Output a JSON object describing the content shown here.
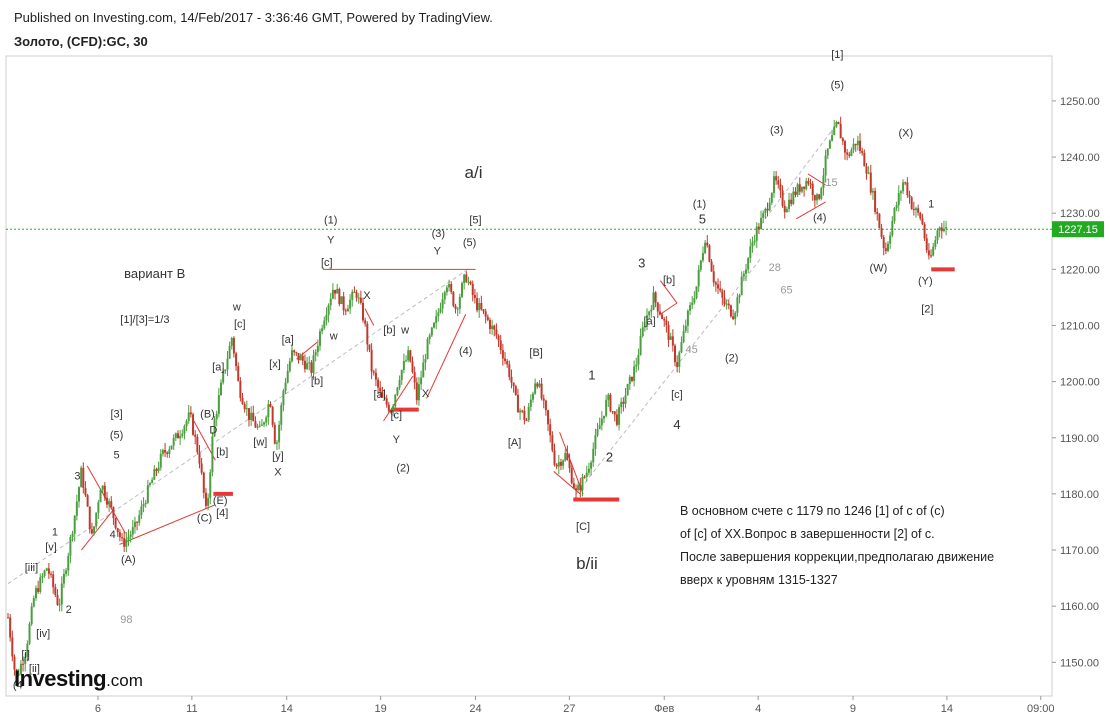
{
  "header": {
    "published": "Published on Investing.com, 14/Feb/2017 - 3:36:46 GMT, Powered by TradingView.",
    "symbol": "Золото, (CFD):GC, 30"
  },
  "logo": {
    "brand": "Investing",
    "suffix": ".com"
  },
  "colors": {
    "up_candle": "#4a9e3f",
    "down_candle": "#c0392b",
    "last_price_line": "#22aa22",
    "annotation_line": "#e53935",
    "support_mark": "#e53935",
    "trend_dashed": "#bdbdbd",
    "axis_text": "#555555",
    "annotation_text": "#333333",
    "fib_text": "#999999"
  },
  "chart_data": {
    "type": "candlestick",
    "symbol": "Золото, (CFD):GC, 30",
    "ylim": [
      1144,
      1258
    ],
    "y_ticks": [
      1150,
      1160,
      1170,
      1180,
      1190,
      1200,
      1210,
      1220,
      1230,
      1240,
      1250
    ],
    "y_tick_labels": [
      "1150.00",
      "1160.00",
      "1170.00",
      "1180.00",
      "1190.00",
      "1200.00",
      "1210.00",
      "1220.00",
      "1230.00",
      "1240.00",
      "1250.00"
    ],
    "x_ticks": [
      {
        "label": "6",
        "t": 0.092
      },
      {
        "label": "11",
        "t": 0.188
      },
      {
        "label": "14",
        "t": 0.285
      },
      {
        "label": "19",
        "t": 0.381
      },
      {
        "label": "24",
        "t": 0.478
      },
      {
        "label": "27",
        "t": 0.574
      },
      {
        "label": "Фев",
        "t": 0.671
      },
      {
        "label": "4",
        "t": 0.767
      },
      {
        "label": "9",
        "t": 0.864
      },
      {
        "label": "14",
        "t": 0.96
      },
      {
        "label": "09:00",
        "t": 1.056
      }
    ],
    "last_price": 1227.15,
    "last_price_label": "1227.15",
    "price_path": [
      [
        0.0,
        1158
      ],
      [
        0.008,
        1147
      ],
      [
        0.018,
        1152
      ],
      [
        0.027,
        1162
      ],
      [
        0.04,
        1167
      ],
      [
        0.052,
        1160
      ],
      [
        0.068,
        1176
      ],
      [
        0.075,
        1184
      ],
      [
        0.086,
        1172
      ],
      [
        0.095,
        1182
      ],
      [
        0.106,
        1177
      ],
      [
        0.117,
        1171
      ],
      [
        0.13,
        1174
      ],
      [
        0.144,
        1181
      ],
      [
        0.158,
        1187
      ],
      [
        0.172,
        1190
      ],
      [
        0.186,
        1194
      ],
      [
        0.196,
        1186
      ],
      [
        0.203,
        1176
      ],
      [
        0.21,
        1192
      ],
      [
        0.22,
        1201
      ],
      [
        0.229,
        1208
      ],
      [
        0.236,
        1199
      ],
      [
        0.246,
        1194
      ],
      [
        0.258,
        1191
      ],
      [
        0.268,
        1197
      ],
      [
        0.274,
        1188
      ],
      [
        0.282,
        1199
      ],
      [
        0.29,
        1205
      ],
      [
        0.3,
        1204
      ],
      [
        0.31,
        1202
      ],
      [
        0.322,
        1211
      ],
      [
        0.333,
        1217
      ],
      [
        0.344,
        1213
      ],
      [
        0.356,
        1216
      ],
      [
        0.364,
        1211
      ],
      [
        0.372,
        1202
      ],
      [
        0.382,
        1197
      ],
      [
        0.392,
        1195
      ],
      [
        0.4,
        1201
      ],
      [
        0.41,
        1205
      ],
      [
        0.418,
        1197
      ],
      [
        0.428,
        1206
      ],
      [
        0.438,
        1211
      ],
      [
        0.448,
        1218
      ],
      [
        0.458,
        1213
      ],
      [
        0.468,
        1219
      ],
      [
        0.478,
        1214
      ],
      [
        0.49,
        1211
      ],
      [
        0.5,
        1208
      ],
      [
        0.512,
        1202
      ],
      [
        0.52,
        1196
      ],
      [
        0.53,
        1193
      ],
      [
        0.54,
        1201
      ],
      [
        0.55,
        1194
      ],
      [
        0.56,
        1185
      ],
      [
        0.57,
        1187
      ],
      [
        0.581,
        1180
      ],
      [
        0.592,
        1184
      ],
      [
        0.603,
        1191
      ],
      [
        0.613,
        1197
      ],
      [
        0.622,
        1193
      ],
      [
        0.632,
        1198
      ],
      [
        0.642,
        1203
      ],
      [
        0.65,
        1210
      ],
      [
        0.66,
        1215
      ],
      [
        0.668,
        1212
      ],
      [
        0.676,
        1208
      ],
      [
        0.684,
        1203
      ],
      [
        0.694,
        1211
      ],
      [
        0.704,
        1217
      ],
      [
        0.713,
        1226
      ],
      [
        0.722,
        1218
      ],
      [
        0.732,
        1214
      ],
      [
        0.742,
        1212
      ],
      [
        0.752,
        1219
      ],
      [
        0.763,
        1226
      ],
      [
        0.774,
        1230
      ],
      [
        0.784,
        1236
      ],
      [
        0.794,
        1231
      ],
      [
        0.806,
        1234
      ],
      [
        0.818,
        1236
      ],
      [
        0.828,
        1232
      ],
      [
        0.838,
        1241
      ],
      [
        0.848,
        1246
      ],
      [
        0.858,
        1240
      ],
      [
        0.868,
        1243
      ],
      [
        0.878,
        1238
      ],
      [
        0.887,
        1231
      ],
      [
        0.897,
        1223
      ],
      [
        0.906,
        1230
      ],
      [
        0.916,
        1236
      ],
      [
        0.925,
        1231
      ],
      [
        0.934,
        1229
      ],
      [
        0.942,
        1221
      ],
      [
        0.952,
        1228
      ],
      [
        0.96,
        1227
      ]
    ],
    "wave_labels": [
      {
        "text": "[1]",
        "t": 0.848,
        "v": 1257.6
      },
      {
        "text": "(5)",
        "t": 0.848,
        "v": 1252.2
      },
      {
        "text": "(3)",
        "t": 0.786,
        "v": 1244.2
      },
      {
        "text": "(X)",
        "t": 0.918,
        "v": 1243.7
      },
      {
        "text": "15",
        "t": 0.842,
        "v": 1234.8,
        "fib": true
      },
      {
        "text": "(4)",
        "t": 0.83,
        "v": 1228.6
      },
      {
        "text": "1",
        "t": 0.944,
        "v": 1231.0
      },
      {
        "text": "(1)",
        "t": 0.707,
        "v": 1231.0
      },
      {
        "text": "5",
        "t": 0.71,
        "v": 1228.2,
        "size": 13
      },
      {
        "text": "(W)",
        "t": 0.89,
        "v": 1219.6
      },
      {
        "text": "(Y)",
        "t": 0.938,
        "v": 1217.3
      },
      {
        "text": "[2]",
        "t": 0.94,
        "v": 1212.3
      },
      {
        "text": "28",
        "t": 0.784,
        "v": 1219.7,
        "fib": true
      },
      {
        "text": "65",
        "t": 0.796,
        "v": 1215.7,
        "fib": true
      },
      {
        "text": "45",
        "t": 0.699,
        "v": 1205.1,
        "fib": true
      },
      {
        "text": "(2)",
        "t": 0.74,
        "v": 1203.6
      },
      {
        "text": "3",
        "t": 0.648,
        "v": 1220.3,
        "size": 13
      },
      {
        "text": "[b]",
        "t": 0.676,
        "v": 1217.5
      },
      {
        "text": "[a]",
        "t": 0.656,
        "v": 1210.2
      },
      {
        "text": "[c]",
        "t": 0.684,
        "v": 1197.1
      },
      {
        "text": "4",
        "t": 0.684,
        "v": 1191.6,
        "size": 13
      },
      {
        "text": "1",
        "t": 0.597,
        "v": 1200.4,
        "size": 13
      },
      {
        "text": "2",
        "t": 0.615,
        "v": 1185.8,
        "size": 13
      },
      {
        "text": "[B]",
        "t": 0.54,
        "v": 1204.6
      },
      {
        "text": "[A]",
        "t": 0.518,
        "v": 1188.5
      },
      {
        "text": "[C]",
        "t": 0.588,
        "v": 1173.6
      },
      {
        "text": "b/ii",
        "t": 0.592,
        "v": 1166.6,
        "size": 17
      },
      {
        "text": "a/i",
        "t": 0.476,
        "v": 1236.3,
        "size": 17
      },
      {
        "text": "[5]",
        "t": 0.478,
        "v": 1228.2
      },
      {
        "text": "(3)",
        "t": 0.44,
        "v": 1225.8
      },
      {
        "text": "(5)",
        "t": 0.472,
        "v": 1224.2
      },
      {
        "text": "Y",
        "t": 0.439,
        "v": 1222.6
      },
      {
        "text": "(4)",
        "t": 0.468,
        "v": 1204.8
      },
      {
        "text": "(1)",
        "t": 0.33,
        "v": 1228.2
      },
      {
        "text": "Y",
        "t": 0.33,
        "v": 1224.6
      },
      {
        "text": "[c]",
        "t": 0.326,
        "v": 1220.6
      },
      {
        "text": "w",
        "t": 0.333,
        "v": 1207.5
      },
      {
        "text": "X",
        "t": 0.367,
        "v": 1214.7
      },
      {
        "text": "[b]",
        "t": 0.39,
        "v": 1208.6
      },
      {
        "text": "w",
        "t": 0.406,
        "v": 1208.6
      },
      {
        "text": "[a]",
        "t": 0.38,
        "v": 1197.1
      },
      {
        "text": "[c]",
        "t": 0.397,
        "v": 1193.4
      },
      {
        "text": "X",
        "t": 0.427,
        "v": 1197.3
      },
      {
        "text": "Y",
        "t": 0.397,
        "v": 1189.1
      },
      {
        "text": "(2)",
        "t": 0.404,
        "v": 1184.0
      },
      {
        "text": "[b]",
        "t": 0.316,
        "v": 1199.5
      },
      {
        "text": "[a]",
        "t": 0.286,
        "v": 1206.9
      },
      {
        "text": "[x]",
        "t": 0.273,
        "v": 1202.5
      },
      {
        "text": "[w]",
        "t": 0.258,
        "v": 1188.6
      },
      {
        "text": "[y]",
        "t": 0.276,
        "v": 1186.1
      },
      {
        "text": "X",
        "t": 0.276,
        "v": 1183.3
      },
      {
        "text": "w",
        "t": 0.234,
        "v": 1212.7
      },
      {
        "text": "[c]",
        "t": 0.237,
        "v": 1209.6
      },
      {
        "text": "[a]",
        "t": 0.215,
        "v": 1202.0
      },
      {
        "text": "(B)",
        "t": 0.204,
        "v": 1193.6
      },
      {
        "text": "D",
        "t": 0.21,
        "v": 1190.8
      },
      {
        "text": "[b]",
        "t": 0.219,
        "v": 1186.8
      },
      {
        "text": "(E)",
        "t": 0.217,
        "v": 1178.2
      },
      {
        "text": "[4]",
        "t": 0.219,
        "v": 1176.0
      },
      {
        "text": "(C)",
        "t": 0.201,
        "v": 1175.1
      },
      {
        "text": "[3]",
        "t": 0.111,
        "v": 1193.6
      },
      {
        "text": "(5)",
        "t": 0.111,
        "v": 1189.9
      },
      {
        "text": "5",
        "t": 0.111,
        "v": 1186.3
      },
      {
        "text": "3",
        "t": 0.071,
        "v": 1182.6
      },
      {
        "text": "4",
        "t": 0.107,
        "v": 1172.1
      },
      {
        "text": "1",
        "t": 0.048,
        "v": 1172.6
      },
      {
        "text": "[v]",
        "t": 0.044,
        "v": 1169.9
      },
      {
        "text": "(A)",
        "t": 0.123,
        "v": 1167.7
      },
      {
        "text": "[iii]",
        "t": 0.024,
        "v": 1166.3
      },
      {
        "text": "2",
        "t": 0.062,
        "v": 1158.8
      },
      {
        "text": "[iv]",
        "t": 0.036,
        "v": 1154.5
      },
      {
        "text": "98",
        "t": 0.121,
        "v": 1157.0,
        "fib": true
      },
      {
        "text": "[i]",
        "t": 0.018,
        "v": 1150.8
      },
      {
        "text": "[ii]",
        "t": 0.027,
        "v": 1148.3
      },
      {
        "text": "(4",
        "t": 0.01,
        "v": 1145.3
      },
      {
        "text": "вариант В",
        "t": 0.15,
        "v": 1218.5,
        "size": 13
      },
      {
        "text": "[1]/[3]=1/3",
        "t": 0.14,
        "v": 1210.4,
        "size": 11
      }
    ]
  },
  "note_lines": [
    "В основном счете с 1179 по 1246 [1] of с of (с)",
    "of [с] of ХХ.Вопрос в завершенности [2] of с.",
    "После завершения коррекции,предполагаю движение",
    "вверх к уровням 1315-1327"
  ]
}
